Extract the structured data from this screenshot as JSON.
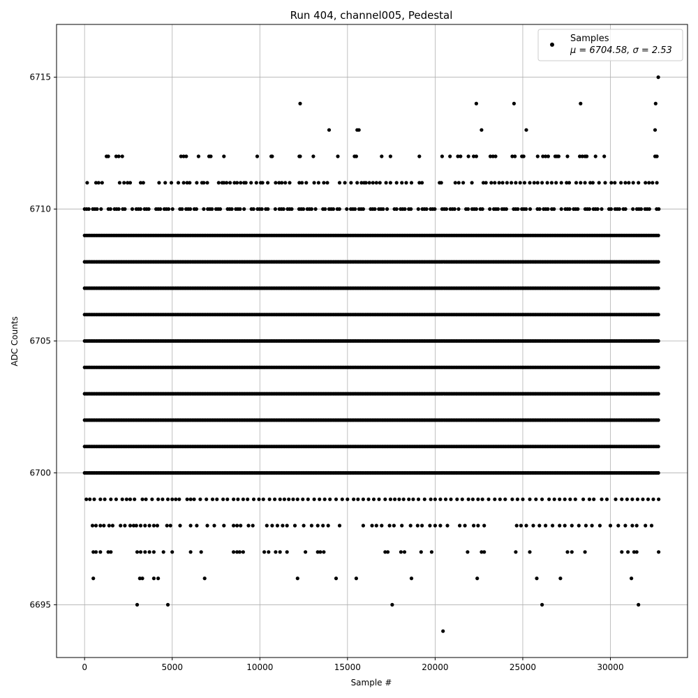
{
  "chart_data": {
    "type": "scatter",
    "title": "Run 404, channel005, Pedestal",
    "xlabel": "Sample #",
    "ylabel": "ADC Counts",
    "xlim": [
      -1600,
      34400
    ],
    "ylim": [
      6693,
      6717
    ],
    "x_ticks": [
      0,
      5000,
      10000,
      15000,
      20000,
      25000,
      30000
    ],
    "x_tick_labels": [
      "0",
      "5000",
      "10000",
      "15000",
      "20000",
      "25000",
      "30000"
    ],
    "y_ticks": [
      6695,
      6700,
      6705,
      6710,
      6715
    ],
    "y_tick_labels": [
      "6695",
      "6700",
      "6705",
      "6710",
      "6715"
    ],
    "grid": true,
    "legend_position": "top-right",
    "marker_color": "#000000",
    "series": [
      {
        "name": "Samples",
        "stats_label": "μ = 6704.58, σ = 2.53",
        "mean": 6704.58,
        "sigma": 2.53,
        "n_samples": 32768,
        "sample_range": [
          0,
          32767
        ],
        "dense_levels": [
          6700,
          6701,
          6702,
          6703,
          6704,
          6705,
          6706,
          6707,
          6708,
          6709
        ],
        "level_points": {
          "6715": [
            32730
          ],
          "6714": [
            12300,
            22350,
            24500,
            28300,
            32580
          ],
          "6713": [
            13950,
            15550,
            15650,
            22650,
            25200,
            32550
          ],
          "6712": [
            1250,
            1350,
            1800,
            1950,
            2150,
            5500,
            5650,
            5800,
            6500,
            7100,
            7200,
            7950,
            9850,
            10650,
            10700,
            12250,
            12300,
            13050,
            14450,
            15400,
            15500,
            16950,
            17450,
            19100,
            20400,
            20850,
            21300,
            21450,
            21900,
            22200,
            22350,
            23150,
            23300,
            23450,
            24400,
            24550,
            24950,
            25050,
            25850,
            26150,
            26300,
            26450,
            26850,
            26950,
            27050,
            27550,
            28250,
            28400,
            28550,
            28650,
            29150,
            29650,
            32550,
            32650
          ],
          "6711": [
            150,
            650,
            800,
            1000,
            2000,
            2250,
            2450,
            2600,
            3200,
            3350,
            4250,
            4600,
            4950,
            5350,
            5650,
            5850,
            6000,
            6400,
            6700,
            6800,
            7000,
            7650,
            7850,
            7950,
            8100,
            8300,
            8550,
            8700,
            8900,
            9100,
            9200,
            9500,
            9800,
            10050,
            10150,
            10450,
            10900,
            11100,
            11250,
            11450,
            11700,
            12250,
            12400,
            12650,
            13100,
            13350,
            13650,
            13850,
            14550,
            14850,
            15200,
            15550,
            15800,
            15950,
            16050,
            16250,
            16450,
            16650,
            16850,
            17200,
            17450,
            17800,
            18100,
            18350,
            18650,
            19100,
            19250,
            20250,
            20350,
            21150,
            21350,
            21600,
            22100,
            22750,
            22900,
            23200,
            23400,
            23650,
            23850,
            24100,
            24350,
            24600,
            24850,
            25100,
            25400,
            25650,
            25850,
            26100,
            26400,
            26650,
            26900,
            27200,
            27500,
            27650,
            28050,
            28300,
            28550,
            28850,
            29000,
            29350,
            29700,
            30050,
            30250,
            30600,
            30850,
            31050,
            31300,
            31600,
            32000,
            32200,
            32400,
            32650
          ]
        },
        "low_points": {
          "6699": [
            100,
            300,
            550,
            900,
            1150,
            1500,
            1800,
            2150,
            2400,
            2600,
            2850,
            3300,
            3500,
            3850,
            4200,
            4450,
            4750,
            5000,
            5200,
            5400,
            5850,
            6050,
            6250,
            6600,
            6950,
            7300,
            7550,
            7900,
            8150,
            8500,
            8750,
            9050,
            9300,
            9650,
            9950,
            10200,
            10550,
            10850,
            11150,
            11400,
            11650,
            11900,
            12150,
            12450,
            12750,
            13100,
            13400,
            13700,
            14000,
            14350,
            14700,
            15000,
            15350,
            15600,
            15900,
            16200,
            16500,
            16800,
            17150,
            17450,
            17700,
            17950,
            18200,
            18500,
            18750,
            19050,
            19400,
            19750,
            20000,
            20300,
            20600,
            20900,
            21250,
            21550,
            21900,
            22150,
            22450,
            22700,
            23050,
            23400,
            23700,
            24000,
            24400,
            24700,
            25000,
            25400,
            25750,
            26100,
            26500,
            26800,
            27100,
            27400,
            27700,
            28000,
            28450,
            28800,
            29050,
            29500,
            29800,
            30300,
            30650,
            30950,
            31250,
            31550,
            31850,
            32150,
            32450,
            32750
          ],
          "6698": [
            450,
            650,
            900,
            1100,
            1400,
            1600,
            2050,
            2300,
            2600,
            2800,
            2950,
            3200,
            3450,
            3700,
            3950,
            4150,
            4700,
            4900,
            5450,
            6050,
            6400,
            7000,
            7400,
            7950,
            8500,
            8700,
            8900,
            9350,
            9600,
            10400,
            10700,
            11000,
            11300,
            11550,
            12000,
            12500,
            12950,
            13300,
            13600,
            13900,
            14550,
            15900,
            16400,
            16650,
            16950,
            17400,
            17650,
            18100,
            18600,
            19000,
            19250,
            19700,
            20000,
            20300,
            20700,
            21400,
            21700,
            22200,
            22450,
            22800,
            24650,
            24900,
            25200,
            25600,
            25950,
            26300,
            26700,
            27100,
            27400,
            27800,
            28200,
            28600,
            28950,
            29400,
            30000,
            30450,
            30850,
            31250,
            31500,
            32000,
            32350
          ],
          "6697": [
            500,
            650,
            900,
            1350,
            1500,
            3000,
            3200,
            3450,
            3700,
            3950,
            4500,
            5000,
            6050,
            6650,
            8500,
            8700,
            8850,
            9050,
            10250,
            10500,
            10900,
            11150,
            11550,
            12600,
            13300,
            13450,
            13650,
            17150,
            17300,
            18050,
            18250,
            19200,
            19800,
            21850,
            22650,
            22800,
            24600,
            25400,
            27550,
            27800,
            28550,
            30650,
            31000,
            31350,
            31500,
            32750
          ],
          "6696": [
            500,
            3150,
            3300,
            3950,
            4200,
            6850,
            12150,
            14350,
            15500,
            18650,
            22400,
            25800,
            27150,
            31200
          ],
          "6695": [
            3000,
            4750,
            17550,
            26100,
            31600
          ],
          "6694": [
            20450
          ]
        }
      }
    ]
  }
}
